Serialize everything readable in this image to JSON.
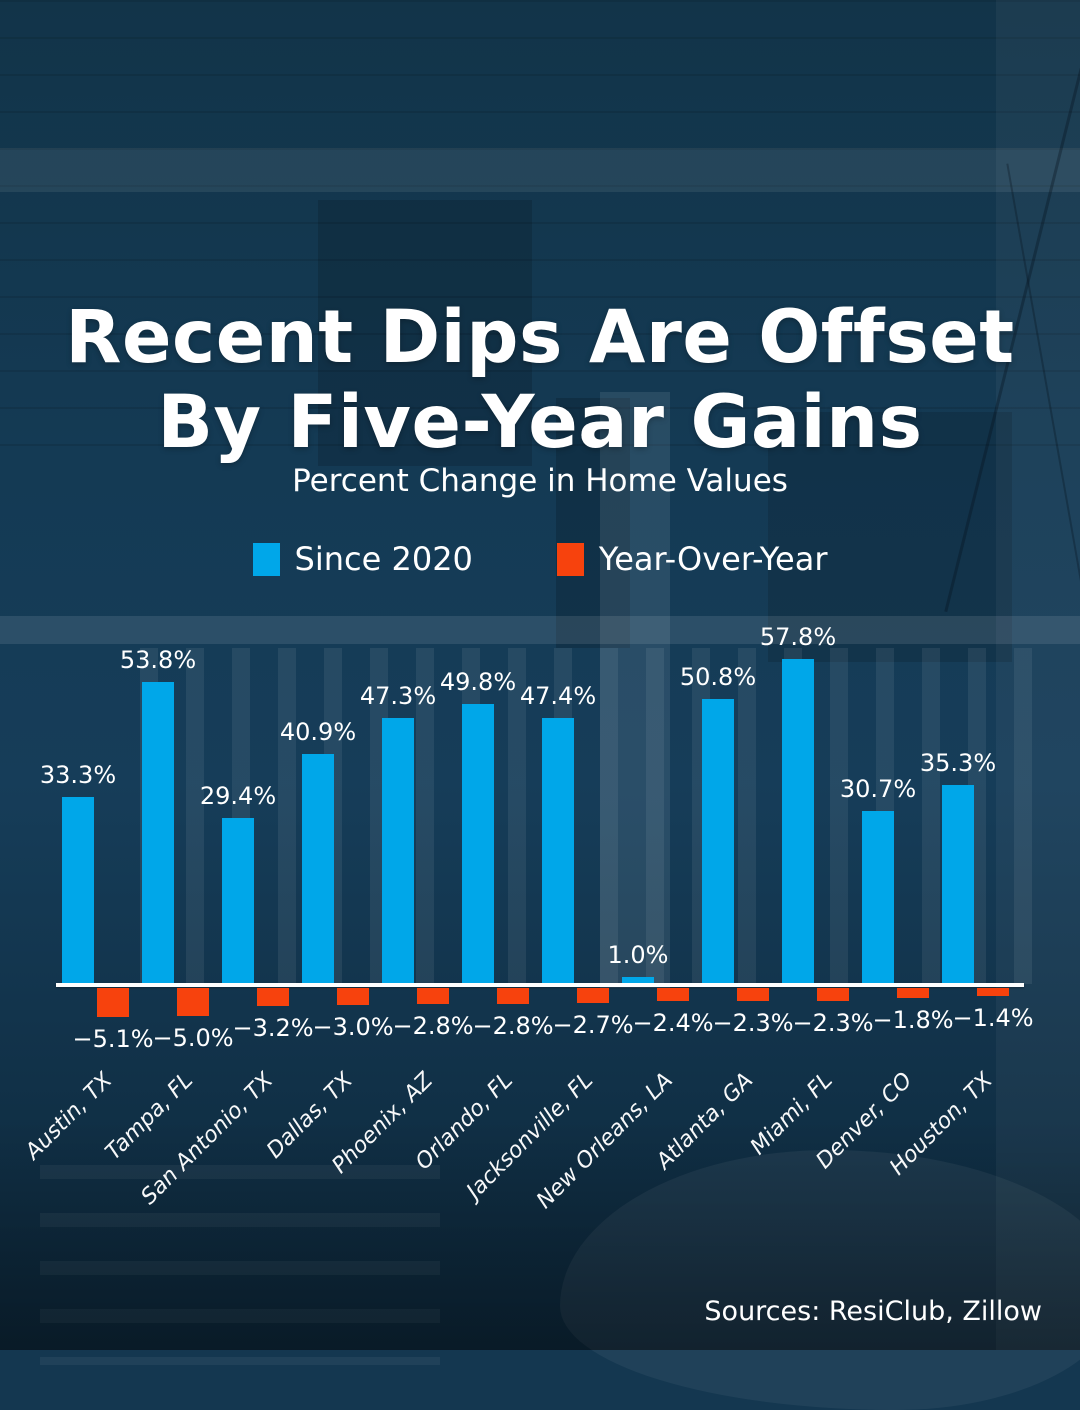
{
  "title": {
    "line1": "Recent Dips Are Offset",
    "line2": "By Five-Year Gains"
  },
  "subtitle": "Percent Change in Home Values",
  "legend": {
    "items": [
      {
        "label": "Since 2020",
        "color": "#00A7E9"
      },
      {
        "label": "Year-Over-Year",
        "color": "#F7420D"
      }
    ]
  },
  "source": "Sources: ResiClub, Zillow",
  "colors": {
    "background": "#143750",
    "bar_positive": "#00A7E9",
    "bar_negative": "#F7420D",
    "axis_line": "#FFFFFF",
    "text": "#FFFFFF"
  },
  "chart_data": {
    "type": "bar",
    "title": "Percent Change in Home Values",
    "xlabel": "",
    "ylabel": "",
    "grid": false,
    "legend_position": "top",
    "ylim": [
      -6,
      60
    ],
    "axis_line_color": "#FFFFFF",
    "categories": [
      "Austin, TX",
      "Tampa, FL",
      "San Antonio, TX",
      "Dallas, TX",
      "Phoenix, AZ",
      "Orlando, FL",
      "Jacksonville, FL",
      "New Orleans, LA",
      "Atlanta, GA",
      "Miami, FL",
      "Denver, CO",
      "Houston, TX"
    ],
    "series": [
      {
        "name": "Since 2020",
        "color": "#00A7E9",
        "values": [
          33.3,
          53.8,
          29.4,
          40.9,
          47.3,
          49.8,
          47.4,
          1.0,
          50.8,
          57.8,
          30.7,
          35.3
        ],
        "labels": [
          "33.3%",
          "53.8%",
          "29.4%",
          "40.9%",
          "47.3%",
          "49.8%",
          "47.4%",
          "1.0%",
          "50.8%",
          "57.8%",
          "30.7%",
          "35.3%"
        ]
      },
      {
        "name": "Year-Over-Year",
        "color": "#F7420D",
        "values": [
          -5.1,
          -5.0,
          -3.2,
          -3.0,
          -2.8,
          -2.8,
          -2.7,
          -2.4,
          -2.3,
          -2.3,
          -1.8,
          -1.4
        ],
        "labels": [
          "−5.1%",
          "−5.0%",
          "−3.2%",
          "−3.0%",
          "−2.8%",
          "−2.8%",
          "−2.7%",
          "−2.4%",
          "−2.3%",
          "−2.3%",
          "−1.8%",
          "−1.4%"
        ]
      }
    ]
  }
}
